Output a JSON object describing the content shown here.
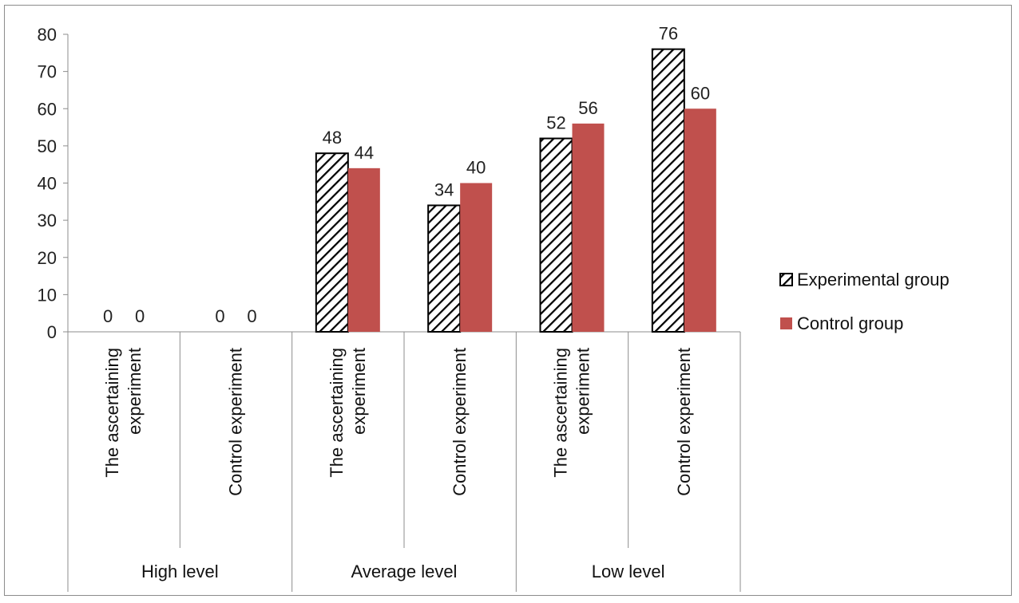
{
  "chart_data": {
    "type": "bar",
    "title": "",
    "xlabel": "",
    "ylabel": "",
    "ylim": [
      0,
      80
    ],
    "yticks": [
      0,
      10,
      20,
      30,
      40,
      50,
      60,
      70,
      80
    ],
    "groups": [
      {
        "label": "High level",
        "categories": [
          "The ascertaining experiment",
          "Control experiment"
        ]
      },
      {
        "label": "Average level",
        "categories": [
          "The ascertaining experiment",
          "Control experiment"
        ]
      },
      {
        "label": "Low level",
        "categories": [
          "The ascertaining experiment",
          "Control experiment"
        ]
      }
    ],
    "categories": [
      "The ascertaining experiment",
      "Control experiment",
      "The ascertaining experiment",
      "Control experiment",
      "The ascertaining experiment",
      "Control experiment"
    ],
    "series": [
      {
        "name": "Experimental group",
        "values": [
          0,
          0,
          48,
          34,
          52,
          76
        ],
        "fill": "hatched",
        "color": "#000000"
      },
      {
        "name": "Control group",
        "values": [
          0,
          0,
          44,
          40,
          56,
          60
        ],
        "fill": "solid",
        "color": "#c0504d"
      }
    ],
    "data_labels": true,
    "grid": false,
    "legend_position": "right"
  }
}
